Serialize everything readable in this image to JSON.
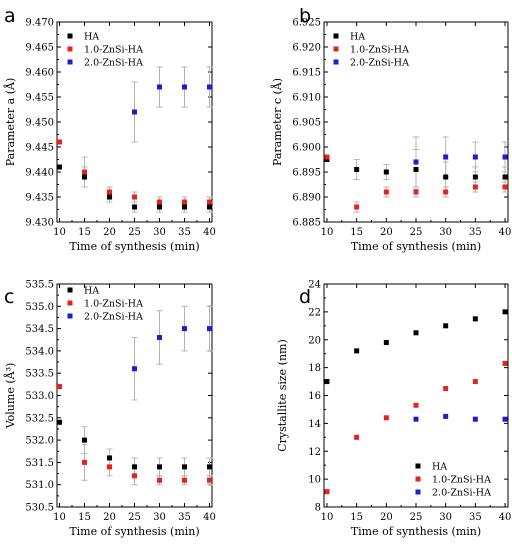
{
  "chart_data": [
    {
      "type": "scatter",
      "panel_letter": "a",
      "xlabel": "Time of synthesis (min)",
      "ylabel": "Parameter a (Å)",
      "xlim": [
        9.5,
        40.5
      ],
      "ylim": [
        9.43,
        9.47
      ],
      "xticks": [
        "10",
        "15",
        "20",
        "25",
        "30",
        "35",
        "40"
      ],
      "yticks": [
        "9.430",
        "9.435",
        "9.440",
        "9.445",
        "9.450",
        "9.455",
        "9.460",
        "9.465",
        "9.470"
      ],
      "legend": "top-left",
      "grid": false,
      "x": [
        10,
        15,
        20,
        25,
        30,
        35,
        40
      ],
      "series": [
        {
          "name": "HA",
          "color": "#000000",
          "values": [
            9.441,
            9.439,
            9.435,
            9.433,
            9.433,
            9.433,
            9.433
          ],
          "err": [
            0,
            0.002,
            0.001,
            0.001,
            0.001,
            0.001,
            0.001
          ]
        },
        {
          "name": "1.0-ZnSi-HA",
          "color": "#e8211b",
          "values": [
            9.446,
            9.44,
            9.436,
            9.435,
            9.434,
            9.434,
            9.434
          ],
          "err": [
            0,
            0.003,
            0.001,
            0.001,
            0.001,
            0.001,
            0.001
          ]
        },
        {
          "name": "2.0-ZnSi-HA",
          "color": "#1c1cd6",
          "values": [
            null,
            null,
            null,
            9.452,
            9.457,
            9.457,
            9.457
          ],
          "err": [
            0,
            0,
            0,
            0.006,
            0.004,
            0.004,
            0.004
          ]
        }
      ]
    },
    {
      "type": "scatter",
      "panel_letter": "b",
      "xlabel": "Time of synthesis (min)",
      "ylabel": "Parameter c (Å)",
      "xlim": [
        9.5,
        40.5
      ],
      "ylim": [
        6.885,
        6.925
      ],
      "xticks": [
        "10",
        "15",
        "20",
        "25",
        "30",
        "35",
        "40"
      ],
      "yticks": [
        "6.885",
        "6.890",
        "6.895",
        "6.900",
        "6.905",
        "6.910",
        "6.915",
        "6.920",
        "6.925"
      ],
      "legend": "top-left",
      "grid": false,
      "x": [
        10,
        15,
        20,
        25,
        30,
        35,
        40
      ],
      "series": [
        {
          "name": "HA",
          "color": "#000000",
          "values": [
            6.8975,
            6.8955,
            6.895,
            6.8955,
            6.894,
            6.894,
            6.894
          ],
          "err": [
            0,
            0.002,
            0.0015,
            0.004,
            0.003,
            0.002,
            0.002
          ]
        },
        {
          "name": "1.0-ZnSi-HA",
          "color": "#e8211b",
          "values": [
            6.898,
            6.888,
            6.891,
            6.891,
            6.891,
            6.892,
            6.892
          ],
          "err": [
            0,
            0.001,
            0.001,
            0.001,
            0.001,
            0.001,
            0.001
          ]
        },
        {
          "name": "2.0-ZnSi-HA",
          "color": "#1c1cd6",
          "values": [
            null,
            null,
            null,
            6.897,
            6.898,
            6.898,
            6.898
          ],
          "err": [
            0,
            0,
            0,
            0.005,
            0.004,
            0.003,
            0.003
          ]
        }
      ]
    },
    {
      "type": "scatter",
      "panel_letter": "c",
      "xlabel": "Time of synthesis (min)",
      "ylabel": "Volume (Å³)",
      "xlim": [
        9.5,
        40.5
      ],
      "ylim": [
        530.5,
        535.5
      ],
      "xticks": [
        "10",
        "15",
        "20",
        "25",
        "30",
        "35",
        "40"
      ],
      "yticks": [
        "530.5",
        "531.0",
        "531.5",
        "532.0",
        "532.5",
        "533.0",
        "533.5",
        "534.0",
        "534.5",
        "535.0",
        "535.5"
      ],
      "legend": "top-left",
      "grid": false,
      "x": [
        10,
        15,
        20,
        25,
        30,
        35,
        40
      ],
      "series": [
        {
          "name": "HA",
          "color": "#000000",
          "values": [
            532.4,
            532.0,
            531.6,
            531.4,
            531.4,
            531.4,
            531.4
          ],
          "err": [
            0,
            0.3,
            0.2,
            0.2,
            0.2,
            0.2,
            0.2
          ]
        },
        {
          "name": "1.0-ZnSi-HA",
          "color": "#e8211b",
          "values": [
            533.2,
            531.5,
            531.4,
            531.2,
            531.1,
            531.1,
            531.1
          ],
          "err": [
            0,
            0.4,
            0.2,
            0.2,
            0.1,
            0.1,
            0.1
          ]
        },
        {
          "name": "2.0-ZnSi-HA",
          "color": "#1c1cd6",
          "values": [
            null,
            null,
            null,
            533.6,
            534.3,
            534.5,
            534.5
          ],
          "err": [
            0,
            0,
            0,
            0.7,
            0.6,
            0.5,
            0.5
          ]
        }
      ]
    },
    {
      "type": "scatter",
      "panel_letter": "d",
      "xlabel": "Time of synthesis (min)",
      "ylabel": "Crystallite size (nm)",
      "xlim": [
        9.5,
        40.5
      ],
      "ylim": [
        8,
        24
      ],
      "xticks": [
        "10",
        "15",
        "20",
        "25",
        "30",
        "35",
        "40"
      ],
      "yticks": [
        "8",
        "10",
        "12",
        "14",
        "16",
        "18",
        "20",
        "22",
        "24"
      ],
      "legend": "bottom-right",
      "grid": false,
      "x": [
        10,
        15,
        20,
        25,
        30,
        35,
        40
      ],
      "series": [
        {
          "name": "HA",
          "color": "#000000",
          "values": [
            17.0,
            19.2,
            19.8,
            20.5,
            21.0,
            21.5,
            22.0
          ],
          "err": [
            0,
            0,
            0,
            0,
            0,
            0,
            0
          ]
        },
        {
          "name": "1.0-ZnSi-HA",
          "color": "#e8211b",
          "values": [
            9.1,
            13.0,
            14.4,
            15.3,
            16.5,
            17.0,
            18.3
          ],
          "err": [
            0,
            0,
            0,
            0,
            0,
            0,
            0
          ]
        },
        {
          "name": "2.0-ZnSi-HA",
          "color": "#1c1cd6",
          "values": [
            null,
            null,
            null,
            14.3,
            14.5,
            14.3,
            14.3
          ],
          "err": [
            0,
            0,
            0,
            0,
            0,
            0,
            0
          ]
        }
      ]
    }
  ]
}
